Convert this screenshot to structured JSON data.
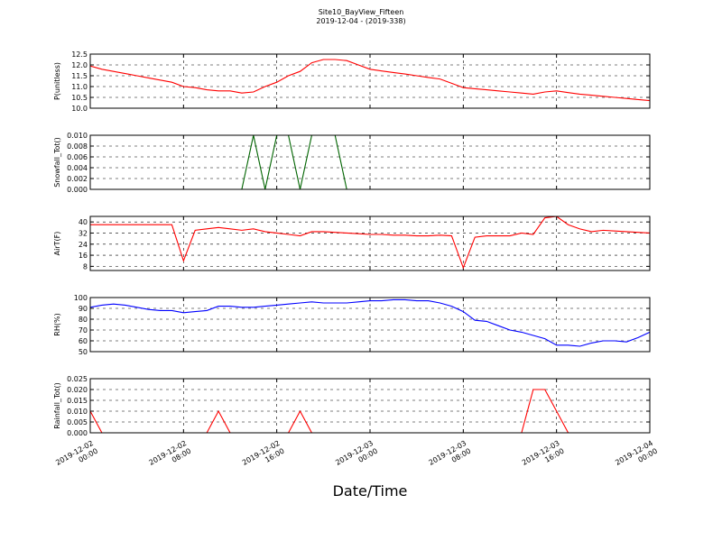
{
  "chart_data": {
    "type": "line",
    "title": "Site10_BayView_Fifteen",
    "subtitle": "2019-12-04 - (2019-338)",
    "xlabel": "Date/Time",
    "grid": true,
    "xlim": [
      "2019-12-02 00:00",
      "2019-12-04 00:00"
    ],
    "xticks": [
      {
        "value": "2019-12-02 00:00",
        "label": "2019-12-02\n00:00"
      },
      {
        "value": "2019-12-02 08:00",
        "label": "2019-12-02\n08:00"
      },
      {
        "value": "2019-12-02 16:00",
        "label": "2019-12-02\n16:00"
      },
      {
        "value": "2019-12-03 00:00",
        "label": "2019-12-03\n00:00"
      },
      {
        "value": "2019-12-03 08:00",
        "label": "2019-12-03\n08:00"
      },
      {
        "value": "2019-12-03 16:00",
        "label": "2019-12-03\n16:00"
      },
      {
        "value": "2019-12-04 00:00",
        "label": "2019-12-04\n00:00"
      }
    ],
    "x": [
      "2019-12-02 00:00",
      "2019-12-02 01:00",
      "2019-12-02 02:00",
      "2019-12-02 03:00",
      "2019-12-02 04:00",
      "2019-12-02 05:00",
      "2019-12-02 06:00",
      "2019-12-02 07:00",
      "2019-12-02 08:00",
      "2019-12-02 09:00",
      "2019-12-02 10:00",
      "2019-12-02 11:00",
      "2019-12-02 12:00",
      "2019-12-02 13:00",
      "2019-12-02 14:00",
      "2019-12-02 15:00",
      "2019-12-02 16:00",
      "2019-12-02 17:00",
      "2019-12-02 18:00",
      "2019-12-02 19:00",
      "2019-12-02 20:00",
      "2019-12-02 21:00",
      "2019-12-02 22:00",
      "2019-12-02 23:00",
      "2019-12-03 00:00",
      "2019-12-03 01:00",
      "2019-12-03 02:00",
      "2019-12-03 03:00",
      "2019-12-03 04:00",
      "2019-12-03 05:00",
      "2019-12-03 06:00",
      "2019-12-03 07:00",
      "2019-12-03 08:00",
      "2019-12-03 09:00",
      "2019-12-03 10:00",
      "2019-12-03 11:00",
      "2019-12-03 12:00",
      "2019-12-03 13:00",
      "2019-12-03 14:00",
      "2019-12-03 15:00",
      "2019-12-03 16:00",
      "2019-12-03 17:00",
      "2019-12-03 18:00",
      "2019-12-03 19:00",
      "2019-12-03 20:00",
      "2019-12-03 21:00",
      "2019-12-03 22:00",
      "2019-12-03 23:00",
      "2019-12-04 00:00"
    ],
    "panels": [
      {
        "ylabel": "P(unitless)",
        "ylim": [
          10,
          12.5
        ],
        "yticks": [
          {
            "value": 10,
            "label": "10.0"
          },
          10.5,
          {
            "value": 11,
            "label": "11.0"
          },
          11.5,
          {
            "value": 12,
            "label": "12.0"
          },
          12.5
        ],
        "series": [
          {
            "name": "P",
            "color": "#ff0000",
            "values": [
              11.95,
              11.8,
              11.7,
              11.6,
              11.5,
              11.4,
              11.3,
              11.2,
              11.0,
              10.95,
              10.85,
              10.8,
              10.8,
              10.7,
              10.75,
              11.0,
              11.2,
              11.5,
              11.7,
              12.1,
              12.25,
              12.25,
              12.2,
              12.0,
              11.8,
              11.72,
              11.65,
              11.58,
              11.5,
              11.42,
              11.35,
              11.15,
              10.95,
              10.9,
              10.85,
              10.8,
              10.75,
              10.7,
              10.65,
              10.75,
              10.8,
              10.72,
              10.65,
              10.6,
              10.55,
              10.5,
              10.45,
              10.4,
              10.35
            ]
          }
        ]
      },
      {
        "ylabel": "Snowfall_Tot()",
        "ylim": [
          0,
          0.01
        ],
        "yticks": [
          {
            "value": 0,
            "label": "0.000"
          },
          {
            "value": 0.002,
            "label": "0.002"
          },
          {
            "value": 0.004,
            "label": "0.004"
          },
          {
            "value": 0.006,
            "label": "0.006"
          },
          {
            "value": 0.008,
            "label": "0.008"
          },
          {
            "value": 0.01,
            "label": "0.010"
          }
        ],
        "series": [
          {
            "name": "Snowfall_Tot",
            "color": "#006400",
            "values": [
              0,
              0,
              0,
              0,
              0,
              0,
              0,
              0,
              0,
              0,
              0,
              0,
              0,
              0,
              0.01,
              0,
              0.01,
              0.01,
              0,
              0.01,
              0.01,
              0.01,
              0,
              0,
              0,
              0,
              0,
              0,
              0,
              0,
              0,
              0,
              0,
              0,
              0,
              0,
              0,
              0,
              0,
              0,
              0,
              0,
              0,
              0,
              0,
              0,
              0,
              0,
              0
            ]
          }
        ]
      },
      {
        "ylabel": "AirT(F)",
        "ylim": [
          5,
          44
        ],
        "yticks": [
          8,
          16,
          24,
          32,
          40
        ],
        "series": [
          {
            "name": "AirT",
            "color": "#ff0000",
            "values": [
              38,
              38,
              38,
              38,
              38,
              38,
              38,
              38,
              12,
              34,
              35,
              36,
              35,
              34,
              35,
              33,
              32,
              31,
              30,
              33,
              33,
              32.5,
              32,
              31.5,
              31,
              31,
              30.5,
              30.5,
              30,
              30,
              30.5,
              30,
              7,
              29,
              30,
              30,
              30,
              32,
              31,
              43,
              44,
              38,
              35,
              33,
              34,
              33.5,
              33,
              32.5,
              32
            ]
          }
        ]
      },
      {
        "ylabel": "RH(%)",
        "ylim": [
          50,
          100
        ],
        "yticks": [
          50,
          60,
          70,
          80,
          90,
          100
        ],
        "series": [
          {
            "name": "RH",
            "color": "#0000ff",
            "values": [
              91,
              93,
              94,
              93,
              91,
              89,
              88,
              88,
              86,
              87,
              88,
              92,
              92,
              91,
              91,
              92,
              93,
              94,
              95,
              96,
              95,
              95,
              95,
              96,
              97,
              97,
              98,
              98,
              97,
              97,
              95,
              92,
              87,
              79,
              78,
              74,
              70,
              68,
              65,
              62,
              56,
              56,
              55,
              58,
              60,
              60,
              59,
              63,
              68
            ]
          }
        ]
      },
      {
        "ylabel": "Rainfall_Tot()",
        "ylim": [
          0,
          0.025
        ],
        "yticks": [
          {
            "value": 0,
            "label": "0.000"
          },
          {
            "value": 0.005,
            "label": "0.005"
          },
          {
            "value": 0.01,
            "label": "0.010"
          },
          {
            "value": 0.015,
            "label": "0.015"
          },
          {
            "value": 0.02,
            "label": "0.020"
          },
          {
            "value": 0.025,
            "label": "0.025"
          }
        ],
        "series": [
          {
            "name": "Rainfall_Tot",
            "color": "#ff0000",
            "values": [
              0.01,
              0,
              0,
              0,
              0,
              0,
              0,
              0,
              0,
              0,
              0,
              0.01,
              0,
              0,
              0,
              0,
              0,
              0,
              0.01,
              0,
              0,
              0,
              0,
              0,
              0,
              0,
              0,
              0,
              0,
              0,
              0,
              0,
              0,
              0,
              0,
              0,
              0,
              0,
              0.02,
              0.02,
              0.01,
              0,
              0,
              0,
              0,
              0,
              0,
              0,
              0
            ]
          }
        ]
      }
    ]
  }
}
